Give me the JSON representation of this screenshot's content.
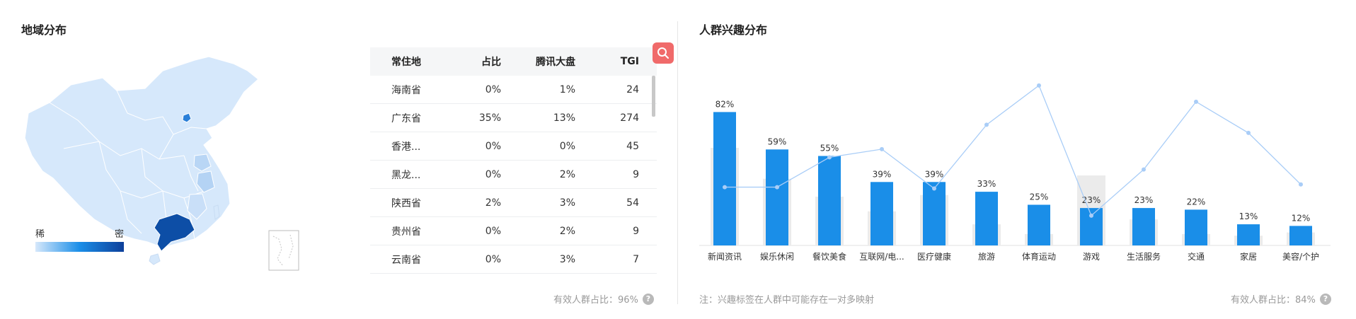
{
  "region": {
    "title": "地域分布",
    "legend": {
      "low": "稀",
      "high": "密"
    },
    "table": {
      "headers": [
        "常住地",
        "占比",
        "腾讯大盘",
        "TGI"
      ],
      "rows": [
        [
          "海南省",
          "0%",
          "1%",
          "24"
        ],
        [
          "广东省",
          "35%",
          "13%",
          "274"
        ],
        [
          "香港...",
          "0%",
          "0%",
          "45"
        ],
        [
          "黑龙...",
          "0%",
          "2%",
          "9"
        ],
        [
          "陕西省",
          "2%",
          "3%",
          "54"
        ],
        [
          "贵州省",
          "0%",
          "2%",
          "9"
        ],
        [
          "云南省",
          "0%",
          "3%",
          "7"
        ]
      ]
    },
    "footnote": "有效人群占比：96%",
    "colors": {
      "light": "#d6e8fb",
      "mid": "#1a8ee8",
      "dark": "#0d3f9a"
    },
    "icons": {
      "search": "search-icon",
      "help": "question-icon"
    }
  },
  "interest": {
    "title": "人群兴趣分布",
    "note": "注：兴趣标签在人群中可能存在一对多映射",
    "footnote": "有效人群占比：84%",
    "chart_data": {
      "type": "bar",
      "categories": [
        "新闻资讯",
        "娱乐休闲",
        "餐饮美食",
        "互联网/电...",
        "医疗健康",
        "旅游",
        "体育运动",
        "游戏",
        "生活服务",
        "交通",
        "家居",
        "美容/个护"
      ],
      "series": [
        {
          "values": [
            82,
            59,
            55,
            39,
            39,
            33,
            25,
            23,
            23,
            22,
            13,
            12
          ]
        }
      ],
      "data_labels": [
        "82%",
        "59%",
        "55%",
        "39%",
        "39%",
        "33%",
        "25%",
        "23%",
        "23%",
        "22%",
        "13%",
        "12%"
      ],
      "background_bars": [
        60,
        41,
        30,
        21,
        31,
        13,
        7,
        43,
        16,
        7,
        6,
        8
      ],
      "line_values": [
        43,
        43,
        65,
        71,
        42,
        89,
        118,
        22,
        56,
        106,
        83,
        45
      ],
      "ylim": [
        0,
        100
      ],
      "line_ylim": [
        0,
        120
      ],
      "colors": {
        "bar": "#1a8ee8",
        "background_bar": "#ebebeb",
        "line": "#a9cdf7"
      }
    }
  }
}
